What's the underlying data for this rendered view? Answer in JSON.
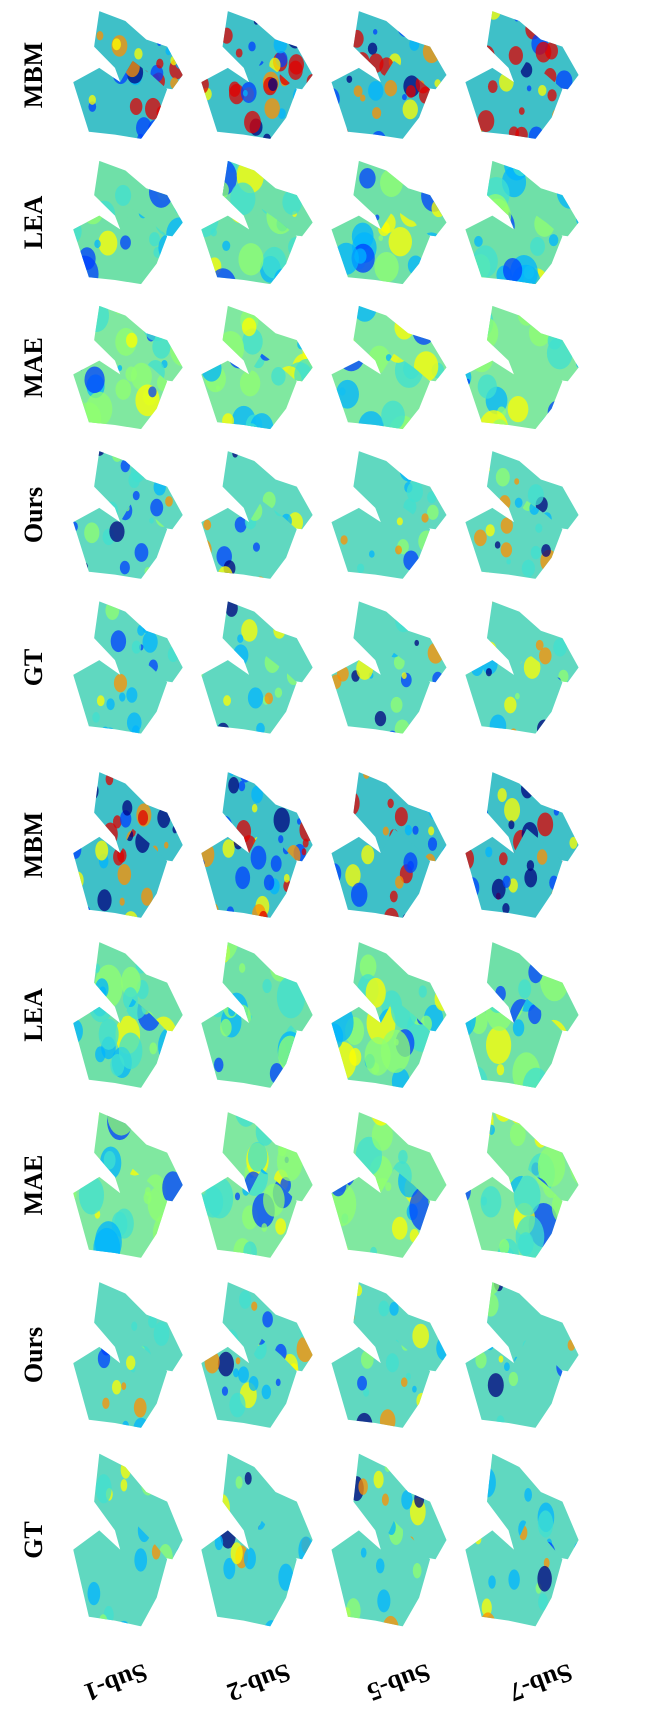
{
  "groups": [
    [
      "MBM",
      "LEA",
      "MAE",
      "Ours",
      "GT"
    ],
    [
      "MBM",
      "LEA",
      "MAE",
      "Ours",
      "GT"
    ]
  ],
  "subjects": [
    "Sub-1",
    "Sub-2",
    "Sub-5",
    "Sub-7"
  ]
}
